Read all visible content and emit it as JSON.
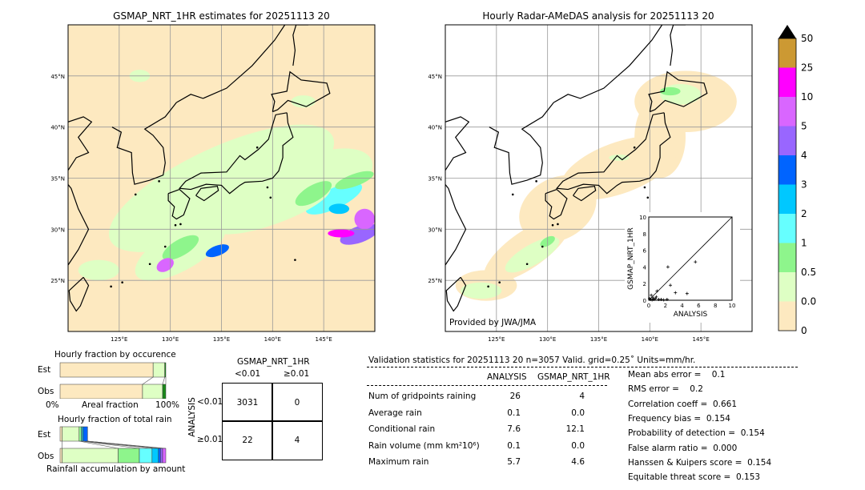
{
  "chart_data": [
    {
      "type": "heatmap",
      "title": "GSMAP_NRT_1HR estimates for 20251113 20",
      "lon_range": [
        120,
        150
      ],
      "lat_range": [
        20,
        50
      ],
      "xticks": [
        "125°E",
        "130°E",
        "135°E",
        "140°E",
        "145°E"
      ],
      "yticks": [
        "45°N",
        "40°N",
        "35°N",
        "30°N",
        "25°N"
      ]
    },
    {
      "type": "heatmap",
      "title": "Hourly Radar-AMeDAS analysis for 20251113 20",
      "lon_range": [
        120,
        150
      ],
      "lat_range": [
        20,
        50
      ],
      "xticks": [
        "125°E",
        "130°E",
        "135°E",
        "140°E",
        "145°E"
      ],
      "yticks": [
        "45°N",
        "40°N",
        "35°N",
        "30°N",
        "25°N"
      ],
      "credit": "Provided by JWA/JMA"
    },
    {
      "type": "scatter",
      "xlabel": "ANALYSIS",
      "ylabel": "GSMAP_NRT_1HR",
      "xlim": [
        0,
        10
      ],
      "ylim": [
        0,
        10
      ],
      "ticks": [
        "0",
        "2",
        "4",
        "6",
        "8",
        "10"
      ],
      "points": [
        [
          2.3,
          4.0
        ],
        [
          5.6,
          4.6
        ],
        [
          2.6,
          1.8
        ],
        [
          3.2,
          0.9
        ],
        [
          4.6,
          0.8
        ],
        [
          1.0,
          1.1
        ],
        [
          0.3,
          0.6
        ],
        [
          0.5,
          0.3
        ],
        [
          0.8,
          0.2
        ],
        [
          1.2,
          0.1
        ],
        [
          1.5,
          0.1
        ],
        [
          2.2,
          0.1
        ],
        [
          0.2,
          0.1
        ],
        [
          0.4,
          0.05
        ],
        [
          0.6,
          0.1
        ],
        [
          0.1,
          0.2
        ],
        [
          1.8,
          0.05
        ],
        [
          0.9,
          0.4
        ]
      ]
    },
    {
      "type": "colorbar",
      "levels": [
        "0",
        "0.01",
        "0.5",
        "1",
        "2",
        "3",
        "4",
        "5",
        "10",
        "25",
        "50"
      ],
      "colors": [
        "#fde9c0",
        "#deffc4",
        "#8ef58c",
        "#66ffff",
        "#00c8ff",
        "#0064ff",
        "#9966ff",
        "#d966ff",
        "#ff00ff",
        "#cc9933"
      ]
    }
  ],
  "occurrence": {
    "title": "Hourly fraction by occurence",
    "est": "Est",
    "obs": "Obs",
    "x0": "0%",
    "xlabel": "Areal fraction",
    "x1": "100%",
    "est_fractions": [
      0.88,
      0.11,
      0.01
    ],
    "obs_fractions": [
      0.78,
      0.19,
      0.03
    ]
  },
  "total": {
    "title": "Hourly fraction of total rain",
    "est": "Est",
    "obs": "Obs",
    "xlabel": "Rainfall accumulation by amount",
    "est_fractions": [
      0.02,
      0.16,
      0.02,
      0.01,
      0.01,
      0.04
    ],
    "obs_fractions": [
      0.02,
      0.53,
      0.2,
      0.12,
      0.06,
      0.02,
      0.02,
      0.03
    ]
  },
  "contingency": {
    "title": "GSMAP_NRT_1HR",
    "col1": "<0.01",
    "col2": "≥0.01",
    "ylabel": "ANALYSIS",
    "row1": "<0.01",
    "row2": "≥0.01",
    "cells": [
      "3031",
      "0",
      "22",
      "4"
    ]
  },
  "stats": {
    "header": "Validation statistics for 20251113 20  n=3057 Valid. grid=0.25˚ Units=mm/hr.",
    "col_a": "ANALYSIS",
    "col_b": "GSMAP_NRT_1HR",
    "rows": [
      {
        "label": "Num of gridpoints raining",
        "a": "26",
        "b": "4"
      },
      {
        "label": "Average rain",
        "a": "0.1",
        "b": "0.0"
      },
      {
        "label": "Conditional rain",
        "a": "7.6",
        "b": "12.1"
      },
      {
        "label": "Rain volume (mm km²10⁶)",
        "a": "0.1",
        "b": "0.0"
      },
      {
        "label": "Maximum rain",
        "a": "5.7",
        "b": "4.6"
      }
    ],
    "scores": [
      "Mean abs error =    0.1",
      "RMS error =    0.2",
      "Correlation coeff =  0.661",
      "Frequency bias =  0.154",
      "Probability of detection =  0.154",
      "False alarm ratio =  0.000",
      "Hanssen & Kuipers score =  0.154",
      "Equitable threat score =  0.153"
    ]
  }
}
